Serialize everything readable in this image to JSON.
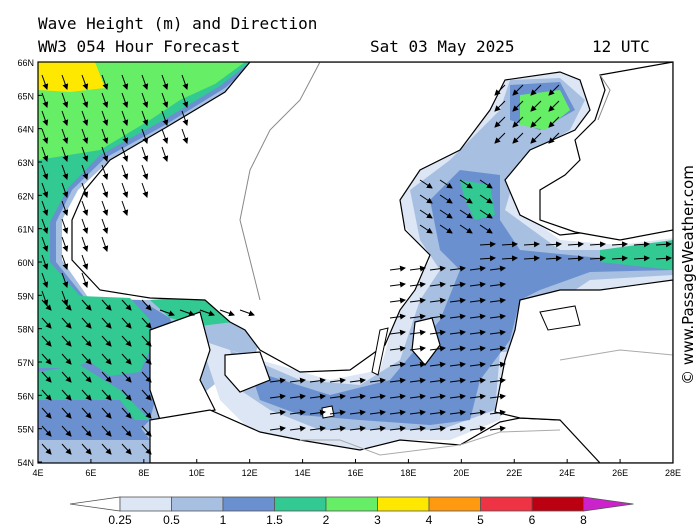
{
  "header": {
    "title_line1": "Wave Height (m) and Direction",
    "title_line2": "WW3 054 Hour Forecast",
    "date": "Sat 03 May 2025",
    "time": "12 UTC"
  },
  "credit": "© www.PassageWeather.com",
  "axes": {
    "lat_labels": [
      "66N",
      "65N",
      "64N",
      "63N",
      "62N",
      "61N",
      "60N",
      "59N",
      "58N",
      "57N",
      "56N",
      "55N",
      "54N"
    ],
    "lon_labels": [
      "4E",
      "6E",
      "8E",
      "10E",
      "12E",
      "14E",
      "16E",
      "18E",
      "20E",
      "22E",
      "24E",
      "26E",
      "28E"
    ]
  },
  "legend": {
    "tick_labels": [
      "0.25",
      "0.5",
      "1",
      "1.5",
      "2",
      "3",
      "4",
      "5",
      "6",
      "8"
    ],
    "colors": [
      "#ffffff",
      "#dde6f4",
      "#a7bfe1",
      "#6a90cf",
      "#33c992",
      "#66ee66",
      "#ffe800",
      "#ff9910",
      "#ee3344",
      "#bb0011",
      "#cc22cc"
    ]
  },
  "colors": {
    "land": "#ffffff",
    "sea_calm": "#ffffff",
    "wave_025_05": "#dde6f4",
    "wave_05_1": "#a7bfe1",
    "wave_1_15": "#6a90cf",
    "wave_15_2": "#33c992",
    "wave_2_3": "#66ee66",
    "wave_3_4": "#ffe800"
  }
}
